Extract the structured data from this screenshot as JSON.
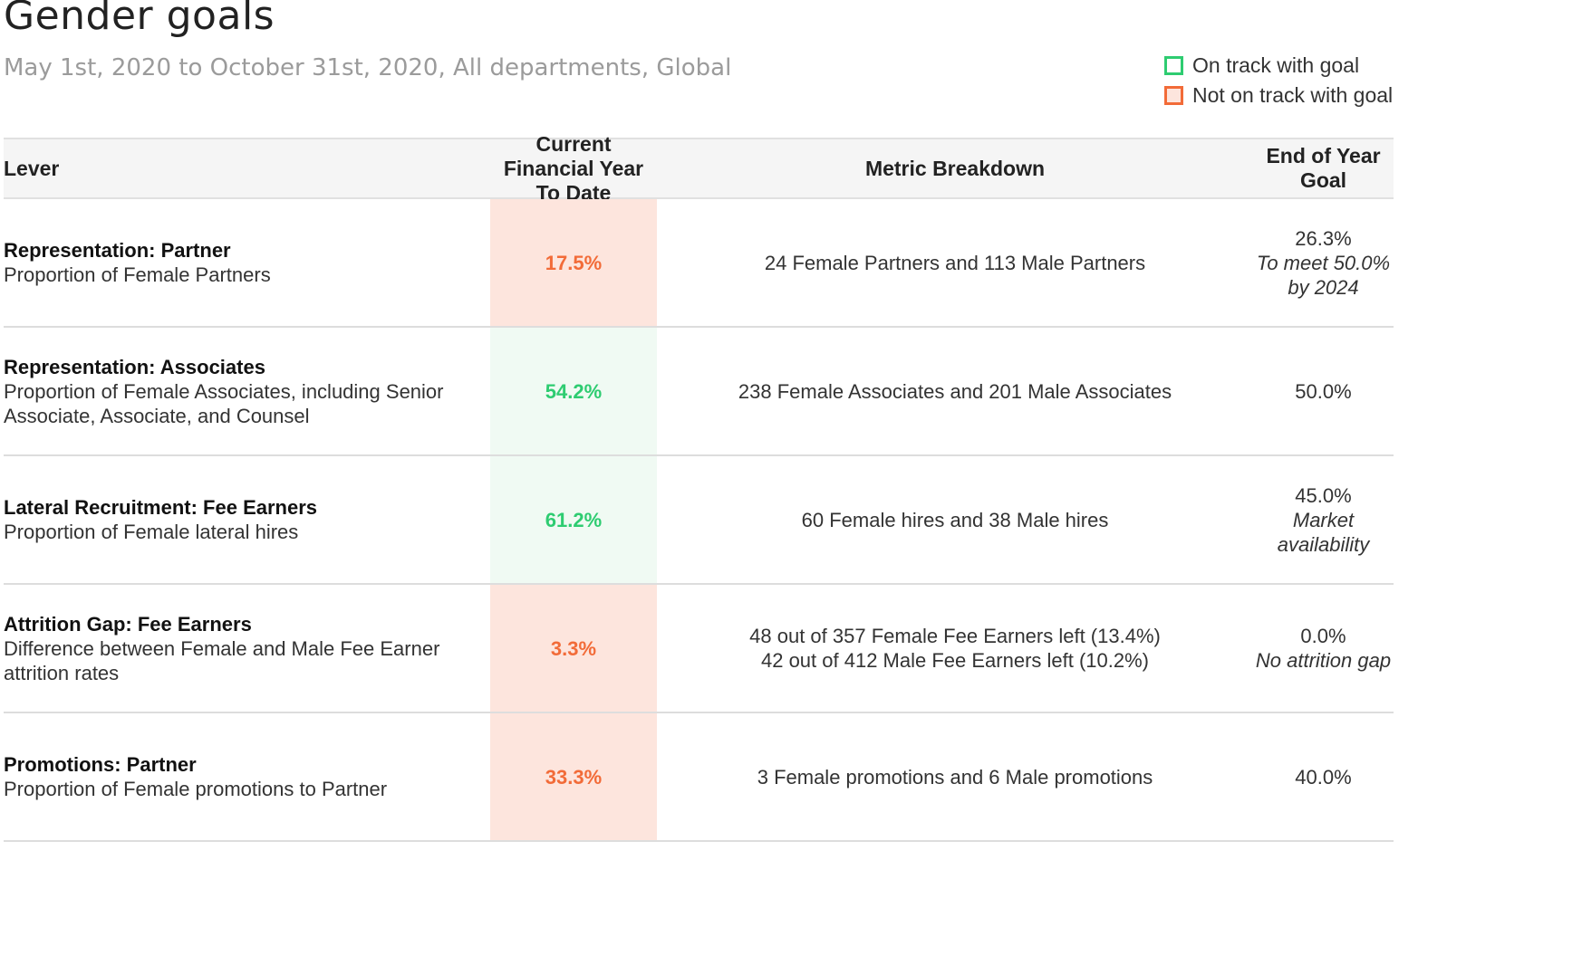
{
  "header": {
    "title": "Gender goals",
    "subtitle": "May 1st, 2020 to October 31st, 2020, All departments, Global"
  },
  "legend": {
    "items": [
      {
        "label": "On track with goal",
        "border_color": "#2ecc71",
        "fill_color": "#ffffff"
      },
      {
        "label": "Not on track with goal",
        "border_color": "#f26b38",
        "fill_color": "#fde5dd"
      }
    ]
  },
  "colors": {
    "on_track_text": "#2ecc71",
    "on_track_bg": "#f0faf3",
    "off_track_text": "#f26b38",
    "off_track_bg": "#fde5dd"
  },
  "chart_data": {
    "type": "table",
    "columns": [
      "Lever",
      "Current Financial Year To Date",
      "Metric Breakdown",
      "End of Year Goal"
    ],
    "rows": [
      {
        "lever": "Representation: Partner",
        "description": "Proportion of Female Partners",
        "current": "17.5%",
        "status": "off",
        "metric": [
          "24 Female Partners and 113 Male Partners"
        ],
        "goal": "26.3%",
        "goal_note": "To meet 50.0% by 2024"
      },
      {
        "lever": "Representation: Associates",
        "description": "Proportion of Female Associates, including Senior Associate, Associate, and Counsel",
        "current": "54.2%",
        "status": "on",
        "metric": [
          "238 Female Associates and 201 Male Associates"
        ],
        "goal": "50.0%",
        "goal_note": ""
      },
      {
        "lever": "Lateral Recruitment: Fee Earners",
        "description": "Proportion of Female lateral hires",
        "current": "61.2%",
        "status": "on",
        "metric": [
          "60 Female hires and 38 Male hires"
        ],
        "goal": "45.0%",
        "goal_note": "Market availability"
      },
      {
        "lever": "Attrition Gap: Fee Earners",
        "description": "Difference between Female and Male Fee Earner attrition rates",
        "current": "3.3%",
        "status": "off",
        "metric": [
          "48 out of 357 Female Fee Earners left (13.4%)",
          "42 out of 412 Male Fee Earners left (10.2%)"
        ],
        "goal": "0.0%",
        "goal_note": "No attrition gap"
      },
      {
        "lever": "Promotions: Partner",
        "description": "Proportion of Female promotions to Partner",
        "current": "33.3%",
        "status": "off",
        "metric": [
          "3 Female promotions and 6 Male promotions"
        ],
        "goal": "40.0%",
        "goal_note": ""
      }
    ]
  }
}
